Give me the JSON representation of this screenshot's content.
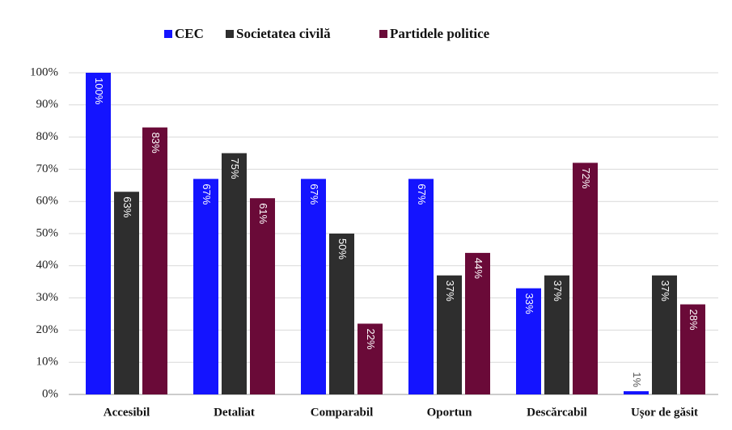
{
  "chart_data": {
    "type": "bar",
    "categories": [
      "Accesibil",
      "Detaliat",
      "Comparabil",
      "Oportun",
      "Descărcabil",
      "Ușor de găsit"
    ],
    "series": [
      {
        "name": "CEC",
        "color": "#1414ff",
        "values": [
          100,
          67,
          67,
          67,
          33,
          1
        ],
        "value_labels": [
          "100%",
          "67%",
          "67%",
          "67%",
          "33%",
          "1%"
        ]
      },
      {
        "name": "Societatea civilă",
        "color": "#2e2e2e",
        "values": [
          63,
          75,
          50,
          37,
          37,
          37
        ],
        "value_labels": [
          "63%",
          "75%",
          "50%",
          "37%",
          "37%",
          "37%"
        ]
      },
      {
        "name": "Partidele politice",
        "color": "#6a0a38",
        "values": [
          83,
          61,
          22,
          44,
          72,
          28
        ],
        "value_labels": [
          "83%",
          "61%",
          "22%",
          "44%",
          "72%",
          "28%"
        ]
      }
    ],
    "ylim": [
      0,
      100
    ],
    "yticks": [
      {
        "value": 0,
        "label": "0%"
      },
      {
        "value": 10,
        "label": "10%"
      },
      {
        "value": 20,
        "label": "20%"
      },
      {
        "value": 30,
        "label": "30%"
      },
      {
        "value": 40,
        "label": "40%"
      },
      {
        "value": 50,
        "label": "50%"
      },
      {
        "value": 60,
        "label": "60%"
      },
      {
        "value": 70,
        "label": "70%"
      },
      {
        "value": 80,
        "label": "80%"
      },
      {
        "value": 90,
        "label": "90%"
      },
      {
        "value": 100,
        "label": "100%"
      }
    ],
    "grid": true,
    "legend": "top"
  }
}
